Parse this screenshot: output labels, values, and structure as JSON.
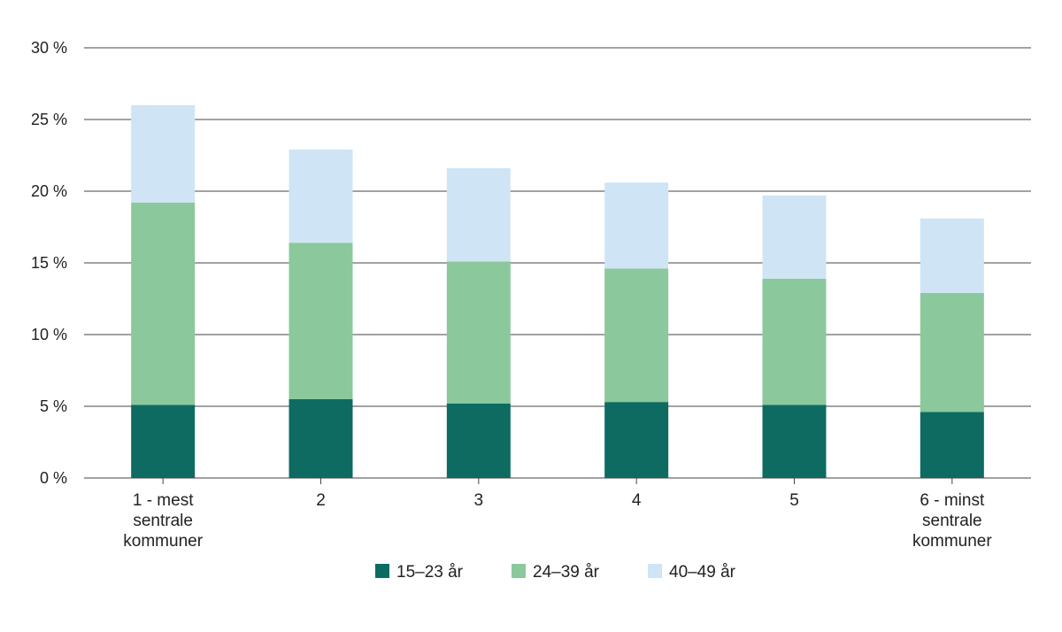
{
  "chart_data": {
    "type": "bar",
    "stacked": true,
    "title": "",
    "xlabel": "",
    "ylabel": "",
    "ylim": [
      0,
      30
    ],
    "yticks": [
      0,
      5,
      10,
      15,
      20,
      25,
      30
    ],
    "ytick_labels": [
      "0 %",
      "5 %",
      "10 %",
      "15 %",
      "20 %",
      "25 %",
      "30 %"
    ],
    "grid": true,
    "legend_position": "bottom",
    "categories": [
      "1 - mest sentrale kommuner",
      "2",
      "3",
      "4",
      "5",
      "6 - minst sentrale kommuner"
    ],
    "category_label_lines": [
      [
        "1 - mest",
        "sentrale",
        "kommuner"
      ],
      [
        "2"
      ],
      [
        "3"
      ],
      [
        "4"
      ],
      [
        "5"
      ],
      [
        "6 - minst",
        "sentrale",
        "kommuner"
      ]
    ],
    "series": [
      {
        "name": "15–23 år",
        "color": "#0d6b62",
        "values": [
          5.1,
          5.5,
          5.2,
          5.3,
          5.1,
          4.6
        ]
      },
      {
        "name": "24–39 år",
        "color": "#8bc89c",
        "values": [
          14.1,
          10.9,
          9.9,
          9.3,
          8.8,
          8.3
        ]
      },
      {
        "name": "40–49 år",
        "color": "#cfe4f4",
        "values": [
          6.8,
          6.5,
          6.5,
          6.0,
          5.8,
          5.2
        ]
      }
    ]
  }
}
